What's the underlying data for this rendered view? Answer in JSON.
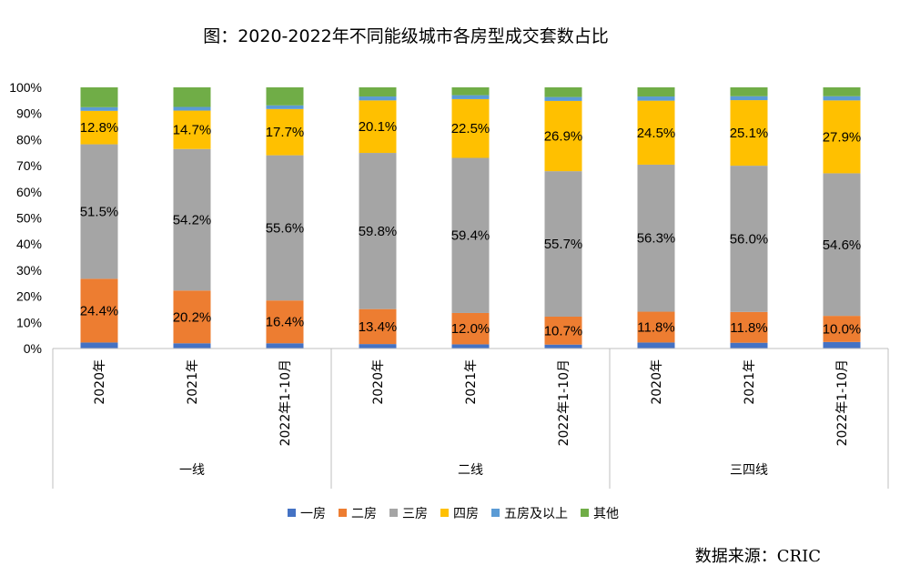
{
  "chart_data": {
    "type": "bar",
    "stacked": "percent",
    "title": "图：2020-2022年不同能级城市各房型成交套数占比",
    "source": "数据来源：CRIC",
    "groups": [
      {
        "label": "一线",
        "categories": [
          "2020年",
          "2021年",
          "2022年1-10月"
        ]
      },
      {
        "label": "二线",
        "categories": [
          "2020年",
          "2021年",
          "2022年1-10月"
        ]
      },
      {
        "label": "三四线",
        "categories": [
          "2020年",
          "2021年",
          "2022年1-10月"
        ]
      }
    ],
    "categories": [
      "2020年",
      "2021年",
      "2022年1-10月",
      "2020年",
      "2021年",
      "2022年1-10月",
      "2020年",
      "2021年",
      "2022年1-10月"
    ],
    "yticks": [
      "0%",
      "10%",
      "20%",
      "30%",
      "40%",
      "50%",
      "60%",
      "70%",
      "80%",
      "90%",
      "100%"
    ],
    "ylim": [
      0,
      100
    ],
    "legend_position": "bottom",
    "grid": false,
    "series": [
      {
        "name": "一房",
        "color": "#4472C4",
        "values": [
          2.3,
          2.0,
          2.0,
          1.7,
          1.6,
          1.5,
          2.3,
          2.2,
          2.5
        ]
      },
      {
        "name": "二房",
        "color": "#ED7D31",
        "values": [
          24.4,
          20.2,
          16.4,
          13.4,
          12.0,
          10.7,
          11.8,
          11.8,
          10.0
        ]
      },
      {
        "name": "三房",
        "color": "#A5A5A5",
        "values": [
          51.5,
          54.2,
          55.6,
          59.8,
          59.4,
          55.7,
          56.3,
          56.0,
          54.6
        ]
      },
      {
        "name": "四房",
        "color": "#FFC000",
        "values": [
          12.8,
          14.7,
          17.7,
          20.1,
          22.5,
          26.9,
          24.5,
          25.1,
          27.9
        ]
      },
      {
        "name": "五房及以上",
        "color": "#5B9BD5",
        "values": [
          1.4,
          1.4,
          1.4,
          1.5,
          1.5,
          1.5,
          1.6,
          1.5,
          1.6
        ]
      },
      {
        "name": "其他",
        "color": "#70AD47",
        "values": [
          7.6,
          7.5,
          6.9,
          3.5,
          3.0,
          3.7,
          3.5,
          3.4,
          3.4
        ]
      }
    ],
    "labels": {
      "二房": [
        "24.4%",
        "20.2%",
        "16.4%",
        "13.4%",
        "12.0%",
        "10.7%",
        "11.8%",
        "11.8%",
        "10.0%"
      ],
      "三房": [
        "51.5%",
        "54.2%",
        "55.6%",
        "59.8%",
        "59.4%",
        "55.7%",
        "56.3%",
        "56.0%",
        "54.6%"
      ],
      "四房": [
        "12.8%",
        "14.7%",
        "17.7%",
        "20.1%",
        "22.5%",
        "26.9%",
        "24.5%",
        "25.1%",
        "27.9%"
      ]
    }
  }
}
